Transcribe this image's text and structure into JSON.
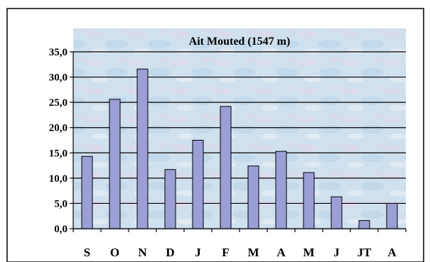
{
  "chart_data": {
    "type": "bar",
    "title": "Ait Mouted (1547 m)",
    "xlabel": "",
    "ylabel": "",
    "categories": [
      "S",
      "O",
      "N",
      "D",
      "J",
      "F",
      "M",
      "A",
      "M",
      "J",
      "JT",
      "A"
    ],
    "values": [
      14.3,
      25.6,
      31.6,
      11.7,
      17.5,
      24.2,
      12.4,
      15.3,
      11.1,
      6.3,
      1.6,
      5.0
    ],
    "ylim": [
      0,
      35
    ],
    "yticks": [
      "0,0",
      "5,0",
      "10,0",
      "15,0",
      "20,0",
      "25,0",
      "30,0",
      "35,0"
    ],
    "grid": true,
    "legend": "none",
    "colors": {
      "bar": "#9b9fd6",
      "bar_stroke": "#000000",
      "grid": "#000000",
      "background": "#cfe0ee"
    }
  }
}
